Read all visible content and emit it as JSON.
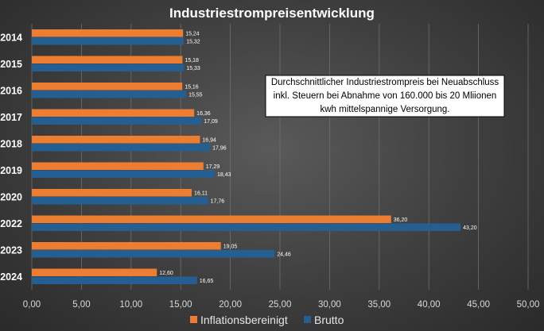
{
  "chart_data": {
    "type": "bar",
    "orientation": "horizontal",
    "title": "Industriestrompreisentwicklung",
    "categories": [
      "2014",
      "2015",
      "2016",
      "2017",
      "2018",
      "2019",
      "2020",
      "2022",
      "2023",
      "2024"
    ],
    "series": [
      {
        "name": "Inflationsbereinigt",
        "color": "#ED7D31",
        "values": [
          15.24,
          15.18,
          15.16,
          16.36,
          16.94,
          17.29,
          16.11,
          36.2,
          19.05,
          12.6
        ],
        "labels": [
          "15,24",
          "15,18",
          "15,16",
          "16,36",
          "16,94",
          "17,29",
          "16,11",
          "36,20",
          "19,05",
          "12,60"
        ]
      },
      {
        "name": "Brutto",
        "color": "#255E91",
        "values": [
          15.32,
          15.33,
          15.55,
          17.09,
          17.96,
          18.43,
          17.76,
          43.2,
          24.46,
          16.65
        ],
        "labels": [
          "15,32",
          "15,33",
          "15,55",
          "17,09",
          "17,96",
          "18,43",
          "17,76",
          "43,20",
          "24,46",
          "16,65"
        ]
      }
    ],
    "xlim": [
      0,
      50
    ],
    "xticks": [
      0,
      5,
      10,
      15,
      20,
      25,
      30,
      35,
      40,
      45,
      50
    ],
    "xtick_labels": [
      "0,00",
      "5,00",
      "10,00",
      "15,00",
      "20,00",
      "25,00",
      "30,00",
      "35,00",
      "40,00",
      "45,00",
      "50,00"
    ],
    "grid": true,
    "legend_position": "bottom",
    "annotation": "Durchschnittlicher Industriestrompreis bei Neuabschluss inkl. Steuern bei Abnahme von 160.000 bis 20 Mliionen kwh mittelspannige Versorgung."
  },
  "annotation_lines": [
    "Durchschnittlicher Industriestrompreis bei Neuabschluss",
    "inkl. Steuern bei Abnahme von 160.000 bis 20 Mliionen",
    "kwh mittelspannige Versorgung."
  ]
}
